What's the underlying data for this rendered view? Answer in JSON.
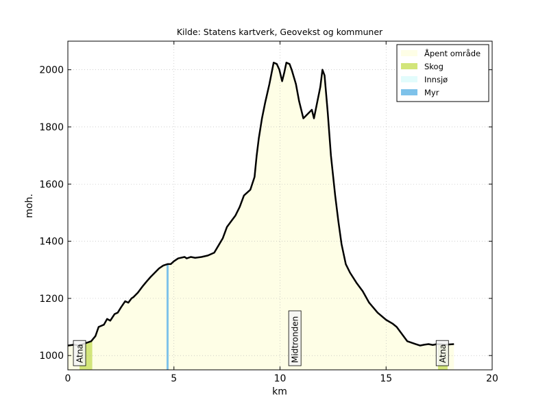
{
  "chart_data": {
    "type": "area",
    "title": "Kilde: Statens kartverk, Geovekst og kommuner",
    "xlabel": "km",
    "ylabel": "moh.",
    "xlim": [
      0,
      20
    ],
    "ylim": [
      950,
      2100
    ],
    "xticks": [
      0,
      5,
      10,
      15,
      20
    ],
    "yticks": [
      1000,
      1200,
      1400,
      1600,
      1800,
      2000
    ],
    "grid": true,
    "legend_position": "top-right",
    "legend": [
      {
        "label": "Åpent område",
        "color": "#fefee6"
      },
      {
        "label": "Skog",
        "color": "#d2e57a"
      },
      {
        "label": "Innsjø",
        "color": "#e2fcfc"
      },
      {
        "label": "Myr",
        "color": "#7ec2ea"
      }
    ],
    "profile": {
      "x": [
        0,
        0.3,
        0.5,
        0.7,
        0.9,
        1.1,
        1.3,
        1.45,
        1.7,
        1.85,
        2.0,
        2.2,
        2.35,
        2.5,
        2.7,
        2.85,
        3.0,
        3.1,
        3.3,
        3.5,
        3.7,
        3.9,
        4.1,
        4.3,
        4.5,
        4.7,
        4.85,
        5.0,
        5.2,
        5.5,
        5.6,
        5.8,
        6.0,
        6.3,
        6.6,
        6.9,
        7.1,
        7.3,
        7.5,
        7.7,
        7.9,
        8.1,
        8.3,
        8.6,
        8.8,
        8.9,
        9.0,
        9.15,
        9.3,
        9.5,
        9.7,
        9.85,
        9.97,
        10.1,
        10.2,
        10.3,
        10.45,
        10.55,
        10.75,
        10.9,
        11.1,
        11.3,
        11.5,
        11.6,
        11.75,
        11.9,
        12.0,
        12.1,
        12.25,
        12.4,
        12.5,
        12.6,
        12.75,
        12.9,
        13.1,
        13.3,
        13.6,
        13.9,
        14.2,
        14.6,
        15.0,
        15.3,
        15.5,
        15.7,
        16.0,
        16.2,
        16.4,
        16.6,
        16.8,
        17.0,
        17.2,
        17.4,
        17.8,
        18.2
      ],
      "y": [
        1035,
        1038,
        1035,
        1040,
        1045,
        1050,
        1068,
        1100,
        1108,
        1128,
        1122,
        1145,
        1150,
        1168,
        1190,
        1185,
        1200,
        1205,
        1220,
        1240,
        1258,
        1275,
        1290,
        1305,
        1315,
        1320,
        1320,
        1330,
        1340,
        1345,
        1340,
        1345,
        1342,
        1345,
        1350,
        1360,
        1385,
        1410,
        1450,
        1470,
        1490,
        1520,
        1560,
        1580,
        1625,
        1700,
        1760,
        1830,
        1885,
        1950,
        2025,
        2020,
        2000,
        1960,
        1990,
        2025,
        2020,
        2000,
        1950,
        1890,
        1830,
        1845,
        1860,
        1830,
        1885,
        1940,
        2000,
        1980,
        1850,
        1700,
        1630,
        1560,
        1470,
        1390,
        1320,
        1290,
        1255,
        1225,
        1185,
        1150,
        1125,
        1112,
        1100,
        1080,
        1050,
        1045,
        1040,
        1035,
        1038,
        1040,
        1037,
        1040,
        1038,
        1040
      ]
    },
    "forest_zones": [
      [
        0.55,
        1.15
      ],
      [
        17.45,
        17.9
      ]
    ],
    "bog_lines": [
      4.7
    ],
    "annotations": [
      {
        "x": 0.55,
        "text": "Atna"
      },
      {
        "x": 10.7,
        "text": "Midtronden"
      },
      {
        "x": 17.65,
        "text": "Atna"
      }
    ]
  }
}
